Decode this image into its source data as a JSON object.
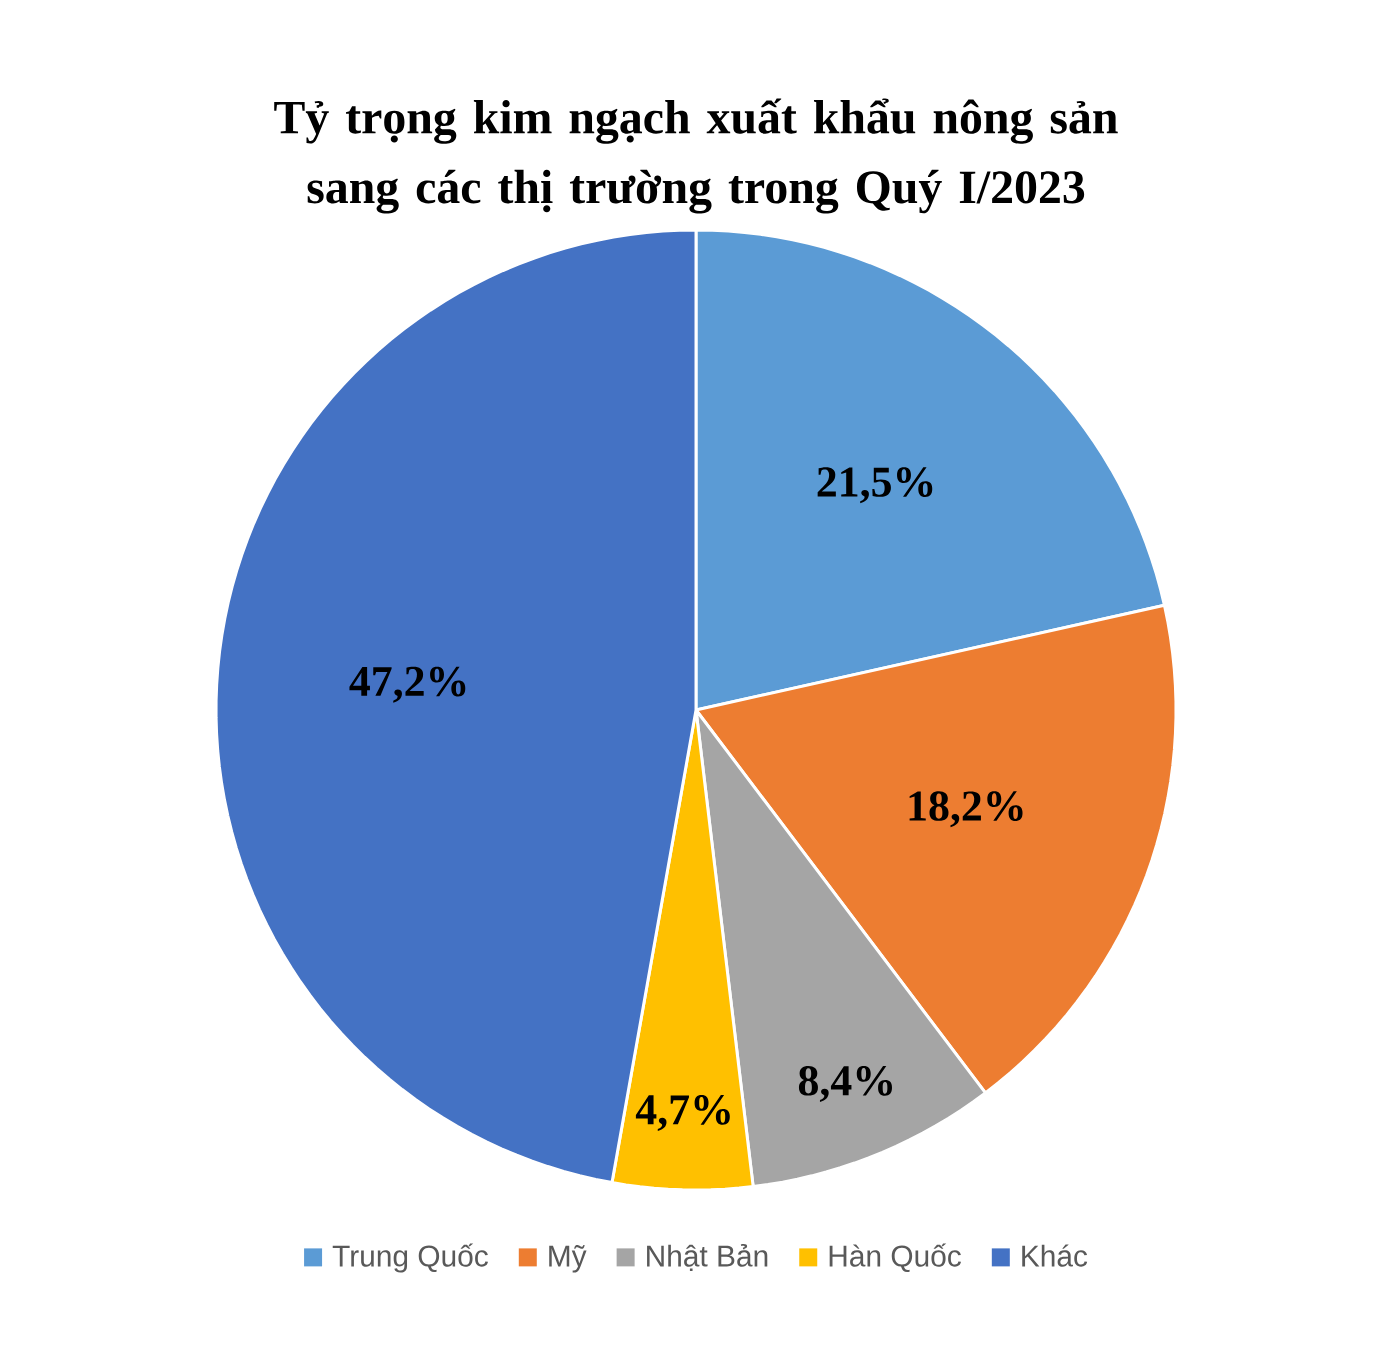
{
  "chart_data": {
    "type": "pie",
    "title": "Tỷ trọng kim ngạch xuất khẩu nông sản sang các thị trường trong Quý I/2023",
    "categories": [
      "Trung Quốc",
      "Mỹ",
      "Nhật Bản",
      "Hàn Quốc",
      "Khác"
    ],
    "values": [
      21.5,
      18.2,
      8.4,
      4.7,
      47.2
    ],
    "value_labels": [
      "21,5%",
      "18,2%",
      "8,4%",
      "4,7%",
      "47,2%"
    ],
    "colors": [
      "#5b9bd5",
      "#ed7d31",
      "#a5a5a5",
      "#ffc000",
      "#4472c4"
    ],
    "legend": "bottom"
  }
}
